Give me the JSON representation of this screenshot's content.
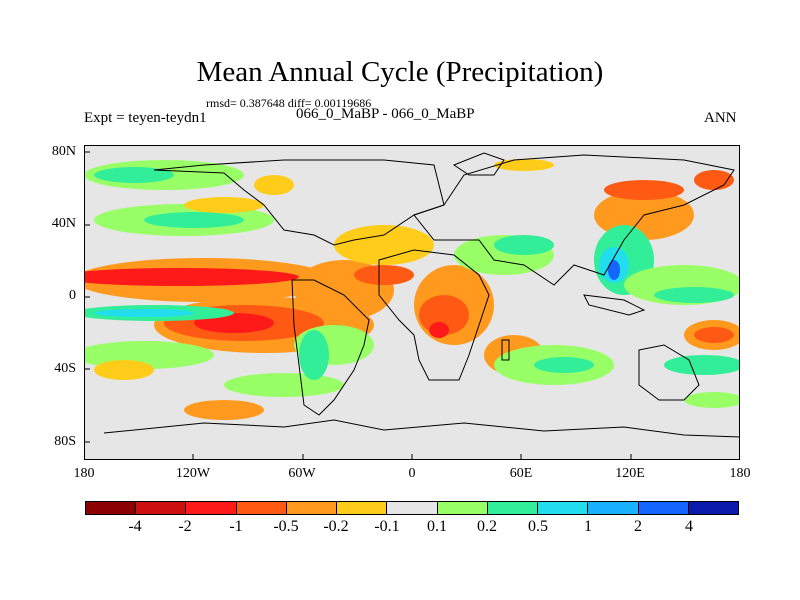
{
  "header": {
    "title": "Mean Annual Cycle (Precipitation)",
    "stats": "rmsd= 0.387648 diff= 0.00119686",
    "experiment": "Expt = teyen-teydn1",
    "comparison": "066_0_MaBP - 066_0_MaBP",
    "season": "ANN"
  },
  "axes": {
    "lat_labels": [
      "80N",
      "40N",
      "0",
      "40S",
      "80S"
    ],
    "lon_labels": [
      "180",
      "120W",
      "60W",
      "0",
      "60E",
      "120E",
      "180"
    ]
  },
  "colorbar": {
    "colors": [
      "#8b0000",
      "#cc1010",
      "#ff1a1a",
      "#ff5a14",
      "#ff9a1e",
      "#ffcc1a",
      "#e6e6e6",
      "#99ff66",
      "#33ee99",
      "#22ddee",
      "#1ab2ff",
      "#1466ff",
      "#0a1aaa"
    ],
    "labels": [
      "-4",
      "-2",
      "-1",
      "-0.5",
      "-0.2",
      "-0.1",
      "0.1",
      "0.2",
      "0.5",
      "1",
      "2",
      "4"
    ]
  },
  "map_colors": {
    "background": "#e6e6e6",
    "red": "#ff1a1a",
    "orange_red": "#ff5a14",
    "orange": "#ff9a1e",
    "yellow": "#ffcc1a",
    "lightgreen": "#99ff66",
    "teal": "#33ee99",
    "cyan": "#22ddee",
    "blue": "#1466ff"
  }
}
